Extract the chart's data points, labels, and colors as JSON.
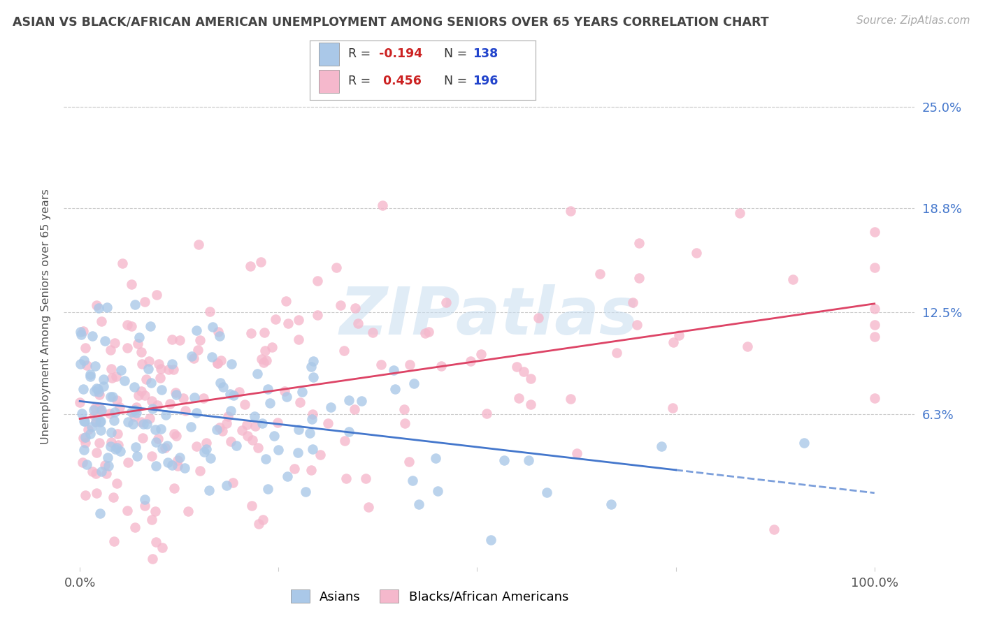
{
  "title": "ASIAN VS BLACK/AFRICAN AMERICAN UNEMPLOYMENT AMONG SENIORS OVER 65 YEARS CORRELATION CHART",
  "source": "Source: ZipAtlas.com",
  "ylabel": "Unemployment Among Seniors over 65 years",
  "ytick_values": [
    0.063,
    0.125,
    0.188,
    0.25
  ],
  "ytick_labels": [
    "6.3%",
    "12.5%",
    "18.8%",
    "25.0%"
  ],
  "ylim": [
    -0.03,
    0.275
  ],
  "xlim": [
    -0.02,
    1.05
  ],
  "asian_color": "#aac8e8",
  "black_color": "#f5b8cc",
  "asian_line_color": "#4477cc",
  "black_line_color": "#dd4466",
  "watermark_text": "ZIPatlas",
  "watermark_color": "#c8ddf0",
  "title_color": "#444444",
  "source_color": "#aaaaaa",
  "ytick_color": "#4477cc",
  "background_color": "#ffffff",
  "grid_color": "#cccccc",
  "asian_R": -0.194,
  "asian_N": 138,
  "black_R": 0.456,
  "black_N": 196,
  "seed": 12345,
  "legend_r1_color": "#cc2222",
  "legend_n1_color": "#2244cc",
  "legend_r2_color": "#cc2222",
  "legend_n2_color": "#2244cc",
  "bottom_legend_entries": [
    "Asians",
    "Blacks/African Americans"
  ]
}
